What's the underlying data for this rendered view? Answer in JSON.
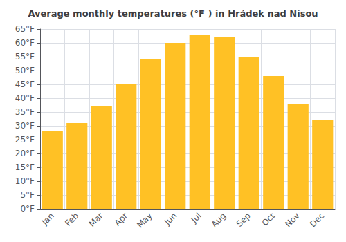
{
  "chart_data": {
    "type": "bar",
    "title": "Average monthly temperatures (°F ) in Hrádek nad Nisou",
    "categories": [
      "Jan",
      "Feb",
      "Mar",
      "Apr",
      "May",
      "Jun",
      "Jul",
      "Aug",
      "Sep",
      "Oct",
      "Nov",
      "Dec"
    ],
    "values": [
      28,
      31,
      37,
      45,
      54,
      60,
      63,
      62,
      55,
      48,
      38,
      32
    ],
    "color": "#FFC125",
    "ylim": [
      0,
      65
    ],
    "yticks": [
      {
        "value": 0,
        "label": "0°F"
      },
      {
        "value": 5,
        "label": "5°F"
      },
      {
        "value": 10,
        "label": "10°F"
      },
      {
        "value": 15,
        "label": "15°F"
      },
      {
        "value": 20,
        "label": "20°F"
      },
      {
        "value": 25,
        "label": "25°F"
      },
      {
        "value": 30,
        "label": "30°F"
      },
      {
        "value": 35,
        "label": "35°F"
      },
      {
        "value": 40,
        "label": "40°F"
      },
      {
        "value": 45,
        "label": "45°F"
      },
      {
        "value": 50,
        "label": "50°F"
      },
      {
        "value": 55,
        "label": "55°F"
      },
      {
        "value": 60,
        "label": "60°F"
      },
      {
        "value": 65,
        "label": "65°F"
      }
    ],
    "grid": true
  }
}
